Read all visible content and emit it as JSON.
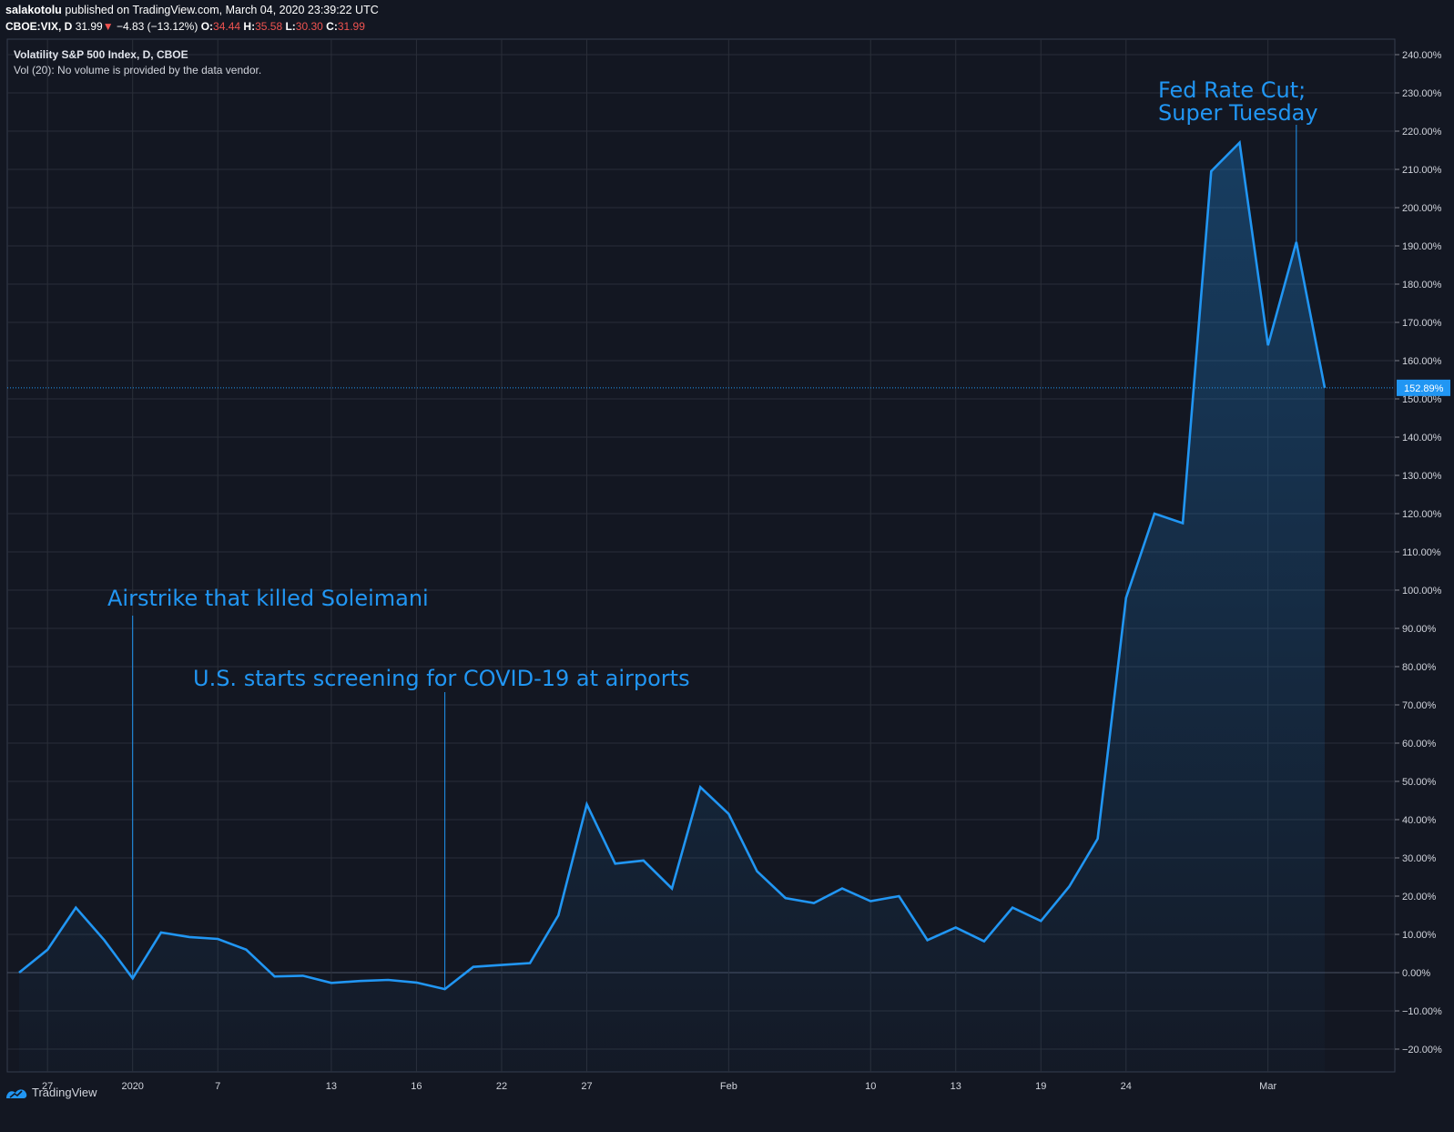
{
  "header": {
    "author": "salakotolu",
    "published_text": "published on TradingView.com, March 04, 2020 23:39:22 UTC",
    "symbol": "CBOE:VIX, D",
    "last": "31.99",
    "change_arrow": "▼",
    "change": "−4.83 (−13.12%)",
    "o_label": "O:",
    "o_value": "34.44",
    "h_label": "H:",
    "h_value": "35.58",
    "l_label": "L:",
    "l_value": "30.30",
    "c_label": "C:",
    "c_value": "31.99"
  },
  "legend": {
    "title": "Volatility S&P 500 Index, D, CBOE",
    "volume_note": "Vol (20): No volume is provided by the data vendor."
  },
  "annotations": [
    {
      "text": "Airstrike that killed Soleimani",
      "x": 4
    },
    {
      "text": "U.S. starts screening for COVID-19 at airports",
      "x": 15
    },
    {
      "lines": [
        "Fed Rate Cut;",
        "Super Tuesday"
      ],
      "x": 45
    }
  ],
  "chart_data": {
    "type": "area",
    "title": "Volatility S&P 500 Index, D, CBOE",
    "xlabel": "",
    "ylabel": "",
    "y_unit": "%",
    "ylim": [
      -25,
      245
    ],
    "yticks": [
      240,
      230,
      220,
      210,
      200,
      190,
      180,
      170,
      160,
      150,
      140,
      130,
      120,
      110,
      100,
      90,
      80,
      70,
      60,
      50,
      40,
      30,
      20,
      10,
      0,
      -10,
      -20
    ],
    "ytick_labels": [
      "240.00%",
      "230.00%",
      "220.00%",
      "210.00%",
      "200.00%",
      "190.00%",
      "180.00%",
      "170.00%",
      "160.00%",
      "150.00%",
      "140.00%",
      "130.00%",
      "120.00%",
      "110.00%",
      "100.00%",
      "90.00%",
      "80.00%",
      "70.00%",
      "60.00%",
      "50.00%",
      "40.00%",
      "30.00%",
      "20.00%",
      "10.00%",
      "0.00%",
      "−10.00%",
      "−20.00%"
    ],
    "xtick_labels": [
      "27",
      "2020",
      "7",
      "13",
      "16",
      "22",
      "27",
      "Feb",
      "10",
      "13",
      "19",
      "24",
      "Mar"
    ],
    "xtick_index": [
      1,
      4,
      7,
      11,
      14,
      17,
      20,
      25,
      30,
      33,
      36,
      39,
      44
    ],
    "last_value_label": "152.89%",
    "last_value": 152.89,
    "grid": true,
    "series": [
      {
        "values": [
          0,
          6,
          17,
          8.5,
          -1.5,
          10.5,
          9.3,
          8.8,
          6,
          -1,
          -0.8,
          -2.7,
          -2.2,
          -1.9,
          -2.6,
          -4.3,
          1.5,
          2,
          2.5,
          15,
          44,
          28.5,
          29.3,
          22,
          48.5,
          41.5,
          26.5,
          19.5,
          18.2,
          22,
          18.7,
          20,
          8.5,
          11.8,
          8.2,
          17,
          13.5,
          22.5,
          35,
          98,
          120,
          117.5,
          209.5,
          217,
          164,
          191,
          152.89
        ]
      }
    ]
  }
}
